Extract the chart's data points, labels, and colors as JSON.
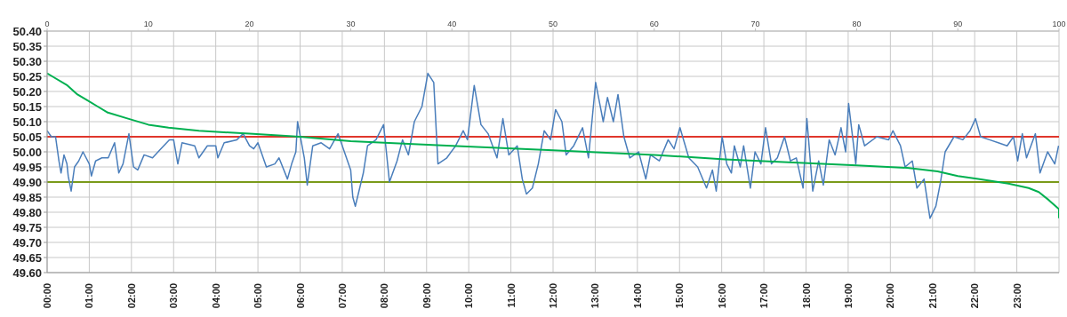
{
  "chart_data": {
    "type": "line",
    "xlim": [
      0,
      24
    ],
    "xticks": [
      {
        "value": 0,
        "label": "00:00"
      },
      {
        "value": 1,
        "label": "01:00"
      },
      {
        "value": 2,
        "label": "02:00"
      },
      {
        "value": 3,
        "label": "03:00"
      },
      {
        "value": 4,
        "label": "04:00"
      },
      {
        "value": 5,
        "label": "05:00"
      },
      {
        "value": 6,
        "label": "06:00"
      },
      {
        "value": 7,
        "label": "07:00"
      },
      {
        "value": 8,
        "label": "08:00"
      },
      {
        "value": 9,
        "label": "09:00"
      },
      {
        "value": 10,
        "label": "10:00"
      },
      {
        "value": 11,
        "label": "11:00"
      },
      {
        "value": 12,
        "label": "12:00"
      },
      {
        "value": 13,
        "label": "13:00"
      },
      {
        "value": 14,
        "label": "14:00"
      },
      {
        "value": 15,
        "label": "15:00"
      },
      {
        "value": 16,
        "label": "16:00"
      },
      {
        "value": 17,
        "label": "17:00"
      },
      {
        "value": 18,
        "label": "18:00"
      },
      {
        "value": 19,
        "label": "19:00"
      },
      {
        "value": 20,
        "label": "20:00"
      },
      {
        "value": 21,
        "label": "21:00"
      },
      {
        "value": 22,
        "label": "22:00"
      },
      {
        "value": 23,
        "label": "23:00"
      }
    ],
    "x2lim": [
      0,
      100
    ],
    "x2ticks": [
      0,
      10,
      20,
      30,
      40,
      50,
      60,
      70,
      80,
      90,
      100
    ],
    "ylim": [
      49.6,
      50.4
    ],
    "yticks": [
      {
        "value": 49.6,
        "label": "49.60"
      },
      {
        "value": 49.65,
        "label": "49.65"
      },
      {
        "value": 49.7,
        "label": "49.70"
      },
      {
        "value": 49.75,
        "label": "49.75"
      },
      {
        "value": 49.8,
        "label": "49.80"
      },
      {
        "value": 49.85,
        "label": "49.85"
      },
      {
        "value": 49.9,
        "label": "49.90"
      },
      {
        "value": 49.95,
        "label": "49.95"
      },
      {
        "value": 50,
        "label": "50.00"
      },
      {
        "value": 50.05,
        "label": "50.05"
      },
      {
        "value": 50.1,
        "label": "50.10"
      },
      {
        "value": 50.15,
        "label": "50.15"
      },
      {
        "value": 50.2,
        "label": "50.20"
      },
      {
        "value": 50.25,
        "label": "50.25"
      },
      {
        "value": 50.3,
        "label": "50.30"
      },
      {
        "value": 50.35,
        "label": "50.35"
      },
      {
        "value": 50.4,
        "label": "50.40"
      }
    ],
    "grid": true,
    "marker": "none",
    "line_style": "solid",
    "ref_lines": [
      {
        "axis": "y",
        "value": 50.05,
        "color": "#e0362c"
      },
      {
        "axis": "y",
        "value": 49.9,
        "color": "#7a9a1a"
      }
    ],
    "series": [
      {
        "color": "#4a7ebb",
        "x": [
          0,
          0.1,
          0.2,
          0.28,
          0.33,
          0.4,
          0.47,
          0.5,
          0.57,
          0.65,
          0.75,
          0.85,
          1,
          1.05,
          1.15,
          1.3,
          1.45,
          1.6,
          1.7,
          1.8,
          1.94,
          2.05,
          2.15,
          2.3,
          2.5,
          2.7,
          2.9,
          3,
          3.1,
          3.2,
          3.5,
          3.6,
          3.8,
          4,
          4.05,
          4.2,
          4.5,
          4.65,
          4.8,
          4.9,
          5,
          5.2,
          5.4,
          5.5,
          5.7,
          5.8,
          5.9,
          5.94,
          6.1,
          6.17,
          6.3,
          6.5,
          6.7,
          6.9,
          7.05,
          7.2,
          7.25,
          7.31,
          7.5,
          7.6,
          7.8,
          7.98,
          8.12,
          8.3,
          8.43,
          8.57,
          8.71,
          8.89,
          9.03,
          9.17,
          9.27,
          9.48,
          9.69,
          9.87,
          9.97,
          10.13,
          10.29,
          10.46,
          10.67,
          10.81,
          10.95,
          11.15,
          11.27,
          11.37,
          11.51,
          11.65,
          11.79,
          11.94,
          12.06,
          12.21,
          12.31,
          12.49,
          12.7,
          12.84,
          13.01,
          13.19,
          13.29,
          13.43,
          13.54,
          13.68,
          13.82,
          14.03,
          14.2,
          14.31,
          14.52,
          14.73,
          14.87,
          15.01,
          15.22,
          15.43,
          15.64,
          15.78,
          15.87,
          16.01,
          16.12,
          16.23,
          16.3,
          16.44,
          16.52,
          16.68,
          16.79,
          16.93,
          17.04,
          17.18,
          17.32,
          17.49,
          17.63,
          17.77,
          17.93,
          18.02,
          18.16,
          18.3,
          18.41,
          18.55,
          18.69,
          18.83,
          18.94,
          19.01,
          19.18,
          19.25,
          19.39,
          19.68,
          19.96,
          20.06,
          20.24,
          20.35,
          20.52,
          20.63,
          20.8,
          20.94,
          21.08,
          21.19,
          21.3,
          21.51,
          21.72,
          21.89,
          22.02,
          22.14,
          22.35,
          22.56,
          22.77,
          22.92,
          23.02,
          23.13,
          23.23,
          23.44,
          23.55,
          23.73,
          23.9,
          23.99
        ],
        "values": [
          50.07,
          50.05,
          50.05,
          49.97,
          49.93,
          49.99,
          49.96,
          49.92,
          49.87,
          49.95,
          49.97,
          50,
          49.96,
          49.92,
          49.97,
          49.98,
          49.98,
          50.03,
          49.93,
          49.96,
          50.06,
          49.95,
          49.94,
          49.99,
          49.98,
          50.01,
          50.04,
          50.04,
          49.96,
          50.03,
          50.02,
          49.98,
          50.02,
          50.02,
          49.98,
          50.03,
          50.04,
          50.06,
          50.02,
          50.01,
          50.03,
          49.95,
          49.96,
          49.98,
          49.91,
          49.96,
          50,
          50.1,
          49.98,
          49.89,
          50.02,
          50.03,
          50.01,
          50.06,
          50,
          49.94,
          49.85,
          49.82,
          49.93,
          50.02,
          50.04,
          50.09,
          49.9,
          49.97,
          50.04,
          49.99,
          50.1,
          50.15,
          50.26,
          50.23,
          49.96,
          49.98,
          50.02,
          50.07,
          50.04,
          50.22,
          50.09,
          50.06,
          49.98,
          50.11,
          49.99,
          50.02,
          49.91,
          49.86,
          49.88,
          49.96,
          50.07,
          50.04,
          50.14,
          50.1,
          49.99,
          50.02,
          50.08,
          49.98,
          50.23,
          50.1,
          50.18,
          50.1,
          50.19,
          50.05,
          49.98,
          50,
          49.91,
          49.99,
          49.97,
          50.04,
          50.01,
          50.08,
          49.98,
          49.95,
          49.88,
          49.94,
          49.87,
          50.05,
          49.96,
          49.93,
          50.02,
          49.95,
          50.02,
          49.88,
          50,
          49.96,
          50.08,
          49.96,
          49.98,
          50.05,
          49.97,
          49.98,
          49.88,
          50.11,
          49.87,
          49.97,
          49.89,
          50.04,
          49.99,
          50.08,
          50,
          50.16,
          49.96,
          50.09,
          50.02,
          50.05,
          50.04,
          50.07,
          50.02,
          49.95,
          49.97,
          49.88,
          49.91,
          49.78,
          49.82,
          49.9,
          50,
          50.05,
          50.04,
          50.07,
          50.11,
          50.05,
          50.04,
          50.03,
          50.02,
          50.05,
          49.97,
          50.06,
          49.98,
          50.06,
          49.93,
          50,
          49.96,
          50.02
        ]
      },
      {
        "color": "#00b050",
        "axis": "x2",
        "x": [
          0,
          0.5,
          2,
          3,
          4,
          5,
          6,
          8,
          10,
          12,
          15,
          20,
          25,
          30,
          40,
          50,
          60,
          67,
          80,
          85,
          88,
          90,
          92,
          95,
          97,
          98,
          99,
          99.5,
          100,
          100
        ],
        "values": [
          50.26,
          50.25,
          50.22,
          50.19,
          50.17,
          50.15,
          50.13,
          50.11,
          50.09,
          50.08,
          50.07,
          50.06,
          50.05,
          50.035,
          50.02,
          50.005,
          49.99,
          49.975,
          49.955,
          49.947,
          49.935,
          49.92,
          49.91,
          49.895,
          49.88,
          49.867,
          49.84,
          49.825,
          49.81,
          49.78
        ]
      }
    ]
  }
}
